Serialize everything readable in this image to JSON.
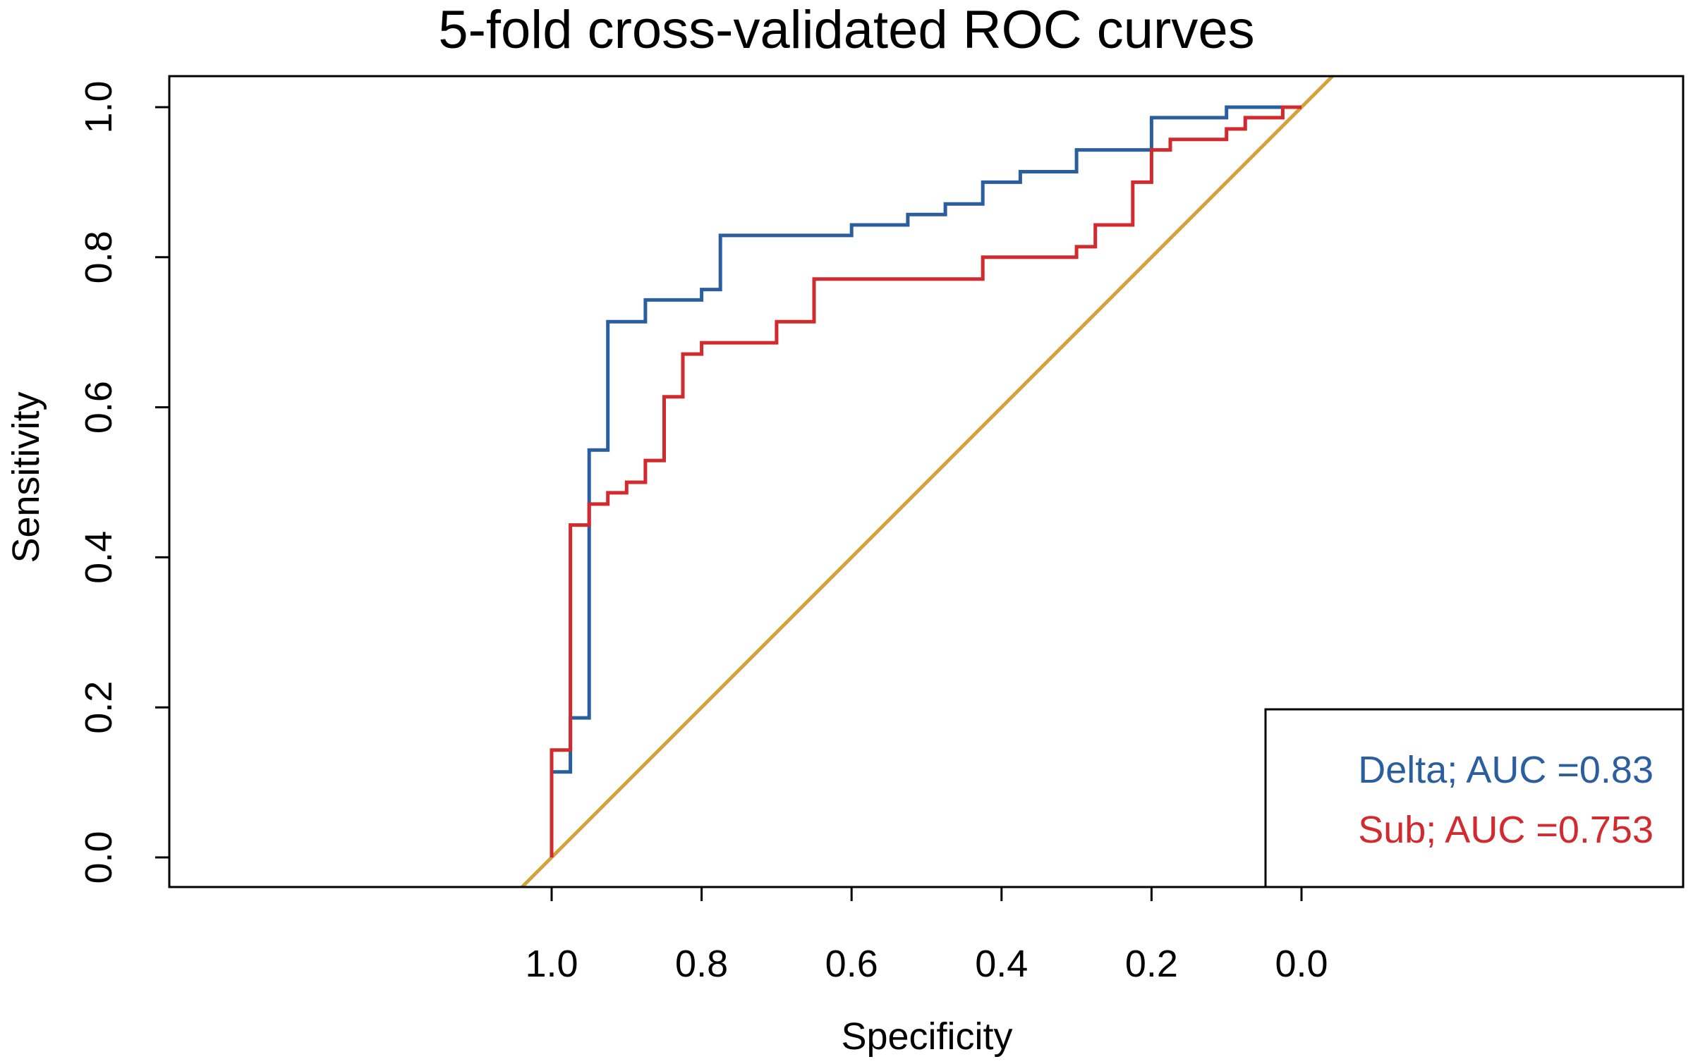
{
  "chart_data": {
    "type": "line",
    "title": "5-fold cross-validated ROC curves",
    "xlabel": "Specificity",
    "ylabel": "Sensitivity",
    "x_reversed": true,
    "xlim": [
      1.0,
      0.0
    ],
    "ylim": [
      0.0,
      1.0
    ],
    "x_ticks": [
      1.0,
      0.8,
      0.6,
      0.4,
      0.2,
      0.0
    ],
    "x_tick_labels": [
      "1.0",
      "0.8",
      "0.6",
      "0.4",
      "0.2",
      "0.0"
    ],
    "y_ticks": [
      0.0,
      0.2,
      0.4,
      0.6,
      0.8,
      1.0
    ],
    "y_tick_labels": [
      "0.0",
      "0.2",
      "0.4",
      "0.6",
      "0.8",
      "1.0"
    ],
    "grid": false,
    "legend_position": "bottom-right",
    "series": [
      {
        "name": "Delta; AUC =0.83",
        "color": "#2b5e9e",
        "x": [
          1.0,
          1.0,
          0.975,
          0.975,
          0.95,
          0.95,
          0.925,
          0.925,
          0.875,
          0.875,
          0.8,
          0.8,
          0.775,
          0.775,
          0.6,
          0.6,
          0.525,
          0.525,
          0.475,
          0.475,
          0.425,
          0.425,
          0.375,
          0.375,
          0.3,
          0.3,
          0.225,
          0.225,
          0.2,
          0.2,
          0.1,
          0.1,
          0.0
        ],
        "y": [
          0.0,
          0.114,
          0.114,
          0.186,
          0.186,
          0.543,
          0.543,
          0.714,
          0.714,
          0.743,
          0.743,
          0.757,
          0.757,
          0.829,
          0.829,
          0.843,
          0.843,
          0.857,
          0.857,
          0.871,
          0.871,
          0.9,
          0.9,
          0.914,
          0.914,
          0.943,
          0.943,
          0.943,
          0.943,
          0.986,
          0.986,
          1.0,
          1.0
        ]
      },
      {
        "name": "Sub; AUC =0.753",
        "color": "#d12a2f",
        "x": [
          1.0,
          1.0,
          0.975,
          0.975,
          0.95,
          0.95,
          0.925,
          0.925,
          0.9,
          0.9,
          0.875,
          0.875,
          0.85,
          0.85,
          0.825,
          0.825,
          0.8,
          0.8,
          0.7,
          0.7,
          0.65,
          0.65,
          0.425,
          0.425,
          0.3,
          0.3,
          0.275,
          0.275,
          0.225,
          0.225,
          0.2,
          0.2,
          0.175,
          0.175,
          0.1,
          0.1,
          0.075,
          0.075,
          0.025,
          0.025,
          0.0
        ],
        "y": [
          0.0,
          0.143,
          0.143,
          0.443,
          0.443,
          0.471,
          0.471,
          0.486,
          0.486,
          0.5,
          0.5,
          0.529,
          0.529,
          0.614,
          0.614,
          0.671,
          0.671,
          0.686,
          0.686,
          0.714,
          0.714,
          0.771,
          0.771,
          0.8,
          0.8,
          0.814,
          0.814,
          0.843,
          0.843,
          0.9,
          0.9,
          0.943,
          0.943,
          0.957,
          0.957,
          0.971,
          0.971,
          0.986,
          0.986,
          1.0,
          1.0
        ]
      }
    ],
    "reference_line": {
      "color": "#d4a23a",
      "x": [
        1.0,
        0.0
      ],
      "y": [
        0.0,
        1.0
      ]
    }
  }
}
